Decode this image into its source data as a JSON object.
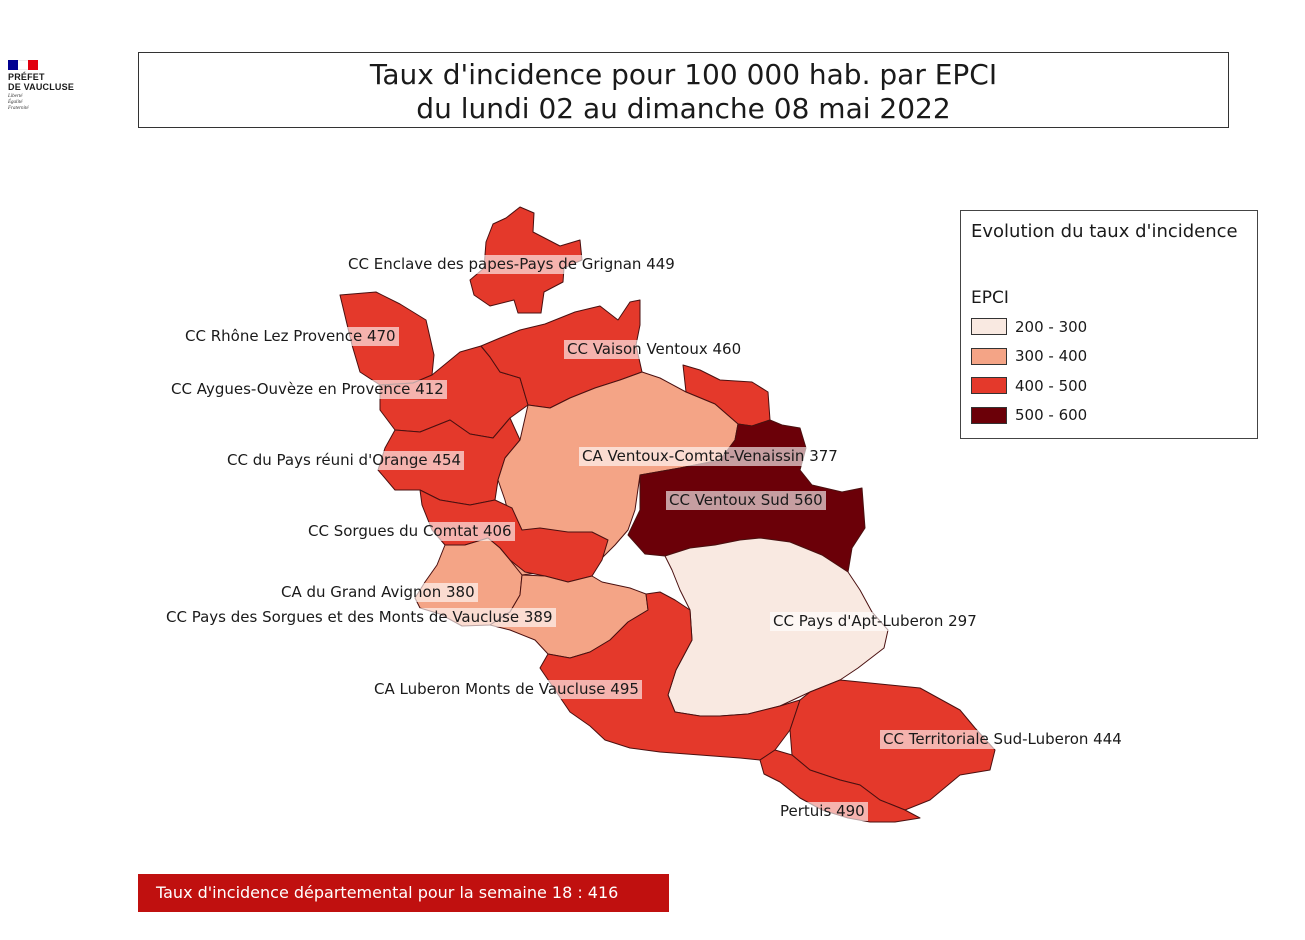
{
  "logo": {
    "line1": "PRÉFET",
    "line2": "DE VAUCLUSE",
    "motto": [
      "Liberté",
      "Égalité",
      "Fraternité"
    ],
    "flag_colors": [
      "#000091",
      "#ffffff",
      "#e1000f"
    ]
  },
  "title": {
    "line1": "Taux d'incidence pour 100 000 hab. par EPCI",
    "line2": "du lundi 02 au dimanche 08 mai 2022"
  },
  "legend": {
    "title": "Evolution du taux d'incidence",
    "layer": "EPCI",
    "classes": [
      {
        "label": "200 - 300",
        "color": "#f9e9e1"
      },
      {
        "label": "300 - 400",
        "color": "#f4a486"
      },
      {
        "label": "400 - 500",
        "color": "#e4392b"
      },
      {
        "label": "500 - 600",
        "color": "#6b0008"
      }
    ]
  },
  "epci": [
    {
      "name": "CC Enclave des papes-Pays de Grignan",
      "value": 449
    },
    {
      "name": "CC Rhône Lez Provence",
      "value": 470
    },
    {
      "name": "CC Vaison Ventoux",
      "value": 460
    },
    {
      "name": "CC Aygues-Ouvèze en Provence",
      "value": 412
    },
    {
      "name": "CC du Pays réuni d'Orange",
      "value": 454
    },
    {
      "name": "CA Ventoux-Comtat-Venaissin",
      "value": 377
    },
    {
      "name": "CC Ventoux Sud",
      "value": 560
    },
    {
      "name": "CC Sorgues du Comtat",
      "value": 406
    },
    {
      "name": "CA du Grand Avignon",
      "value": 380
    },
    {
      "name": "CC Pays des Sorgues et des Monts de Vaucluse",
      "value": 389
    },
    {
      "name": "CC Pays d'Apt-Luberon",
      "value": 297
    },
    {
      "name": "CA Luberon Monts de Vaucluse",
      "value": 495
    },
    {
      "name": "CC Territoriale Sud-Luberon",
      "value": 444
    },
    {
      "name": "Pertuis",
      "value": 490
    }
  ],
  "footer": {
    "text": "Taux d'incidence départemental pour la semaine 18 : 416"
  }
}
